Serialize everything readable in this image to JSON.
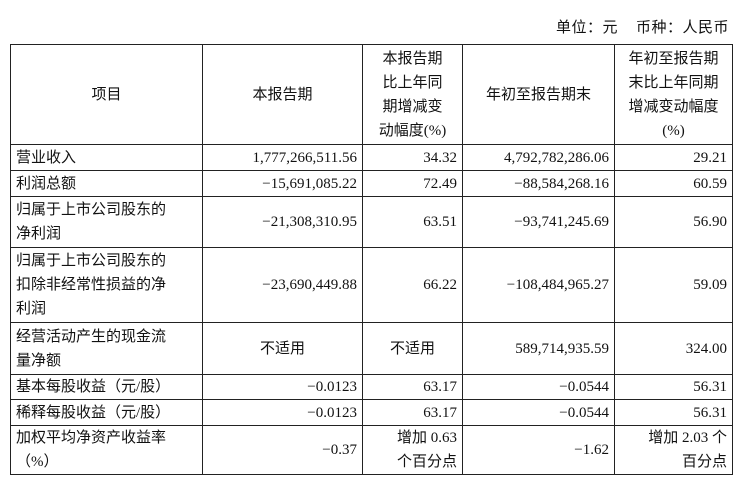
{
  "unit_line": {
    "unit": "单位：元",
    "currency": "币种：人民币"
  },
  "headers": [
    "项目",
    "本报告期",
    "本报告期\n比上年同\n期增减变\n动幅度(%)",
    "年初至报告期末",
    "年初至报告期\n末比上年同期\n增减变动幅度\n(%)"
  ],
  "rows": [
    {
      "item": "营业收入",
      "current": "1,777,266,511.56",
      "current_change": "34.32",
      "ytd": "4,792,782,286.06",
      "ytd_change": "29.21"
    },
    {
      "item": "利润总额",
      "current": "−15,691,085.22",
      "current_change": "72.49",
      "ytd": "−88,584,268.16",
      "ytd_change": "60.59"
    },
    {
      "item": "归属于上市公司股东的\n净利润",
      "current": "−21,308,310.95",
      "current_change": "63.51",
      "ytd": "−93,741,245.69",
      "ytd_change": "56.90"
    },
    {
      "item": "归属于上市公司股东的\n扣除非经常性损益的净\n利润",
      "current": "−23,690,449.88",
      "current_change": "66.22",
      "ytd": "−108,484,965.27",
      "ytd_change": "59.09"
    },
    {
      "item": "经营活动产生的现金流\n量净额",
      "current": "不适用",
      "current_change": "不适用",
      "ytd": "589,714,935.59",
      "ytd_change": "324.00"
    },
    {
      "item": "基本每股收益（元/股）",
      "current": "−0.0123",
      "current_change": "63.17",
      "ytd": "−0.0544",
      "ytd_change": "56.31"
    },
    {
      "item": "稀释每股收益（元/股）",
      "current": "−0.0123",
      "current_change": "63.17",
      "ytd": "−0.0544",
      "ytd_change": "56.31"
    },
    {
      "item": "加权平均净资产收益率\n（%）",
      "current": "−0.37",
      "current_change": "增加 0.63\n个百分点",
      "ytd": "−1.62",
      "ytd_change": "增加 2.03 个\n百分点"
    }
  ]
}
